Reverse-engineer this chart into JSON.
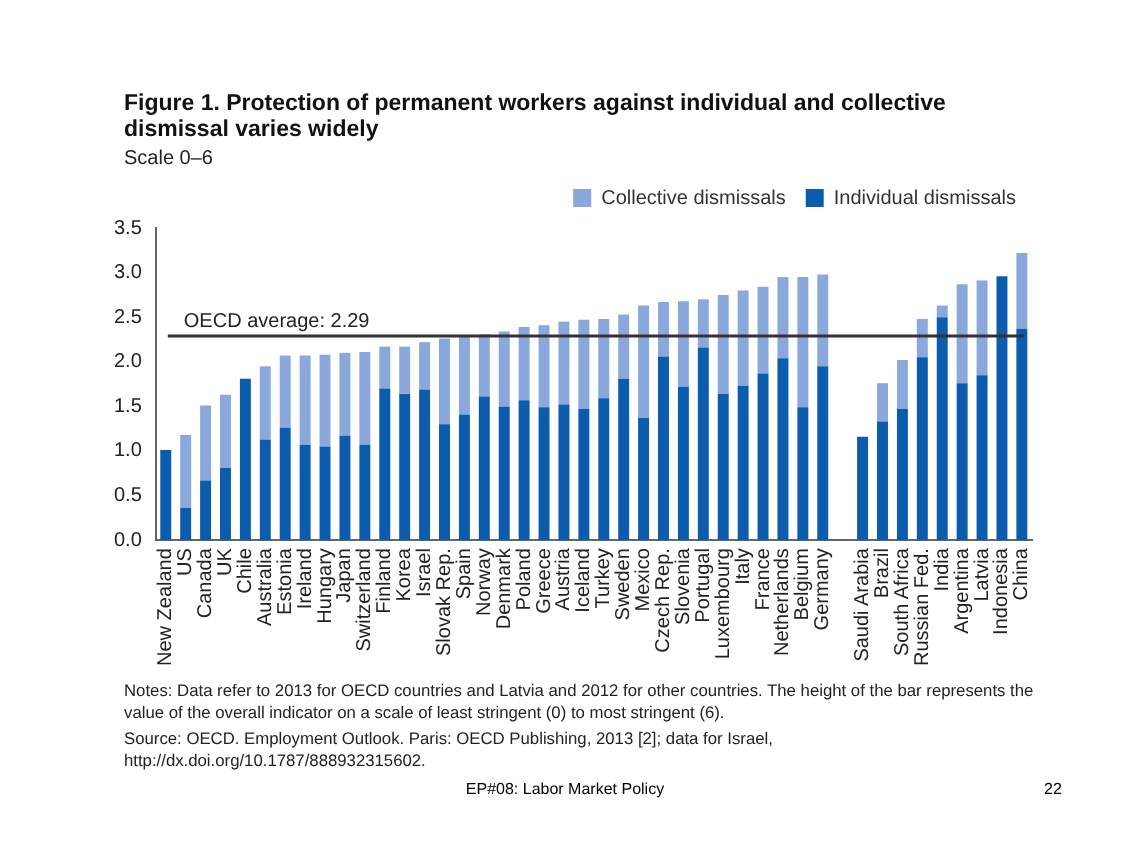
{
  "chart_data": {
    "type": "bar",
    "stacked": true,
    "title": "Figure 1. Protection of permanent workers against individual and collective dismissal varies widely",
    "subtitle": "Scale 0–6",
    "categories": [
      "New Zealand",
      "US",
      "Canada",
      "UK",
      "Chile",
      "Australia",
      "Estonia",
      "Ireland",
      "Hungary",
      "Japan",
      "Switzerland",
      "Finland",
      "Korea",
      "Israel",
      "Slovak Rep.",
      "Spain",
      "Norway",
      "Denmark",
      "Poland",
      "Greece",
      "Austria",
      "Iceland",
      "Turkey",
      "Sweden",
      "Mexico",
      "Czech Rep.",
      "Slovenia",
      "Portugal",
      "Luxembourg",
      "Italy",
      "France",
      "Netherlands",
      "Belgium",
      "Germany",
      null,
      "Saudi Arabia",
      "Brazil",
      "South Africa",
      "Russian Fed.",
      "India",
      "Argentina",
      "Latvia",
      "Indonesia",
      "China"
    ],
    "series": [
      {
        "name": "Individual dismissals",
        "color": "#0b5cad",
        "values": [
          1.01,
          0.36,
          0.67,
          0.81,
          1.81,
          1.13,
          1.26,
          1.07,
          1.05,
          1.17,
          1.07,
          1.7,
          1.64,
          1.69,
          1.3,
          1.41,
          1.61,
          1.5,
          1.57,
          1.49,
          1.52,
          1.47,
          1.59,
          1.81,
          1.37,
          2.06,
          1.72,
          2.16,
          1.64,
          1.73,
          1.87,
          2.04,
          1.49,
          1.95,
          null,
          1.16,
          1.33,
          1.47,
          2.05,
          2.5,
          1.76,
          1.85,
          2.96,
          2.37
        ]
      },
      {
        "name": "Collective dismissals",
        "color": "#8aa8dc",
        "values": [
          0,
          0.82,
          0.84,
          0.82,
          0,
          0.82,
          0.81,
          1.0,
          1.03,
          0.93,
          1.04,
          0.47,
          0.53,
          0.53,
          0.96,
          0.89,
          0.7,
          0.84,
          0.82,
          0.92,
          0.93,
          1.0,
          0.89,
          0.72,
          1.26,
          0.61,
          0.96,
          0.54,
          1.11,
          1.07,
          0.97,
          0.91,
          1.46,
          1.03,
          null,
          0,
          0.43,
          0.55,
          0.43,
          0.13,
          1.11,
          1.06,
          0,
          0.85
        ]
      }
    ],
    "ylim": [
      0,
      3.5
    ],
    "yticks": [
      {
        "value": 0,
        "label": "0.0"
      },
      {
        "value": 0.5,
        "label": "0.5"
      },
      {
        "value": 1,
        "label": "1.0"
      },
      {
        "value": 1.5,
        "label": "1.5"
      },
      {
        "value": 2,
        "label": "2.0"
      },
      {
        "value": 2.5,
        "label": "2.5"
      },
      {
        "value": 3,
        "label": "3.0"
      },
      {
        "value": 3.5,
        "label": "3.5"
      }
    ],
    "grid": false,
    "legend": "top right",
    "ref_lines": [
      {
        "axis": "y",
        "value": 2.29,
        "label": "OECD average: 2.29",
        "color": "#333333"
      }
    ],
    "annotations": [
      "Notes: Data refer to 2013 for OECD countries and Latvia and 2012 for other countries. The height of the bar represents the value of the overall indicator on a scale of least stringent (0) to most stringent (6).",
      "Source: OECD. Employment Outlook. Paris: OECD Publishing, 2013 [2]; data for Israel, http://dx.doi.org/10.1787/888932315602.",
      "EP#08: Labor Market Policy",
      "22"
    ]
  }
}
